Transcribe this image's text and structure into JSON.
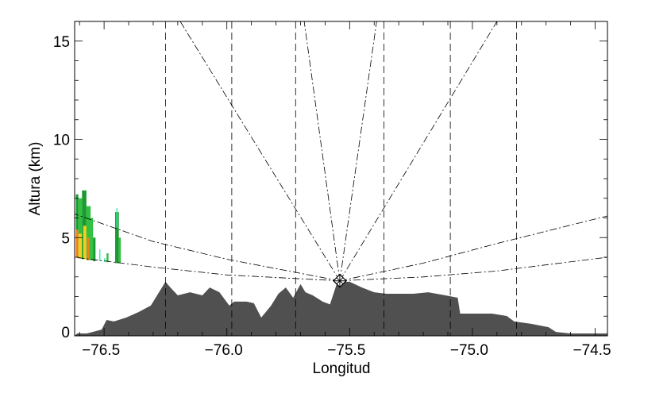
{
  "chart_data": {
    "type": "area",
    "xlabel": "Longitud",
    "ylabel": "Altura (km)",
    "xlim": [
      -76.62,
      -74.45
    ],
    "ylim": [
      0,
      16
    ],
    "xticks": [
      -76.5,
      -76.0,
      -75.5,
      -75.0,
      -74.5
    ],
    "xtick_labels": [
      "−76.5",
      "−76.0",
      "−75.5",
      "−75.0",
      "−74.5"
    ],
    "yticks": [
      0,
      5,
      10,
      15
    ],
    "ytick_labels": [
      "0",
      "5",
      "10",
      "15"
    ],
    "grid": false,
    "terrain_color": "#505050",
    "terrain": [
      [
        -76.61,
        0.12
      ],
      [
        -76.57,
        0.12
      ],
      [
        -76.51,
        0.32
      ],
      [
        -76.49,
        0.81
      ],
      [
        -76.46,
        0.73
      ],
      [
        -76.41,
        0.93
      ],
      [
        -76.36,
        1.21
      ],
      [
        -76.31,
        1.54
      ],
      [
        -76.28,
        2.14
      ],
      [
        -76.25,
        2.75
      ],
      [
        -76.23,
        2.46
      ],
      [
        -76.2,
        2.06
      ],
      [
        -76.15,
        2.22
      ],
      [
        -76.1,
        2.06
      ],
      [
        -76.07,
        2.46
      ],
      [
        -76.03,
        2.22
      ],
      [
        -75.99,
        1.54
      ],
      [
        -75.97,
        1.74
      ],
      [
        -75.92,
        1.74
      ],
      [
        -75.89,
        1.66
      ],
      [
        -75.86,
        0.93
      ],
      [
        -75.82,
        1.54
      ],
      [
        -75.79,
        2.14
      ],
      [
        -75.76,
        2.46
      ],
      [
        -75.73,
        1.94
      ],
      [
        -75.7,
        2.63
      ],
      [
        -75.68,
        2.22
      ],
      [
        -75.65,
        2.06
      ],
      [
        -75.61,
        1.74
      ],
      [
        -75.58,
        1.6
      ],
      [
        -75.55,
        2.75
      ],
      [
        -75.5,
        2.75
      ],
      [
        -75.45,
        2.46
      ],
      [
        -75.4,
        2.22
      ],
      [
        -75.35,
        2.14
      ],
      [
        -75.24,
        2.14
      ],
      [
        -75.18,
        2.22
      ],
      [
        -75.11,
        2.06
      ],
      [
        -75.06,
        1.94
      ],
      [
        -75.05,
        1.13
      ],
      [
        -74.99,
        1.13
      ],
      [
        -74.92,
        1.13
      ],
      [
        -74.86,
        1.01
      ],
      [
        -74.83,
        0.73
      ],
      [
        -74.76,
        0.61
      ],
      [
        -74.69,
        0.44
      ],
      [
        -74.66,
        0.2
      ],
      [
        -74.6,
        0.12
      ],
      [
        -74.45,
        0.12
      ]
    ],
    "radar": {
      "lon": -75.54,
      "alt": 2.8,
      "marker": "diamond-cross"
    },
    "vertical_dashed_lines": [
      -76.25,
      -75.98,
      -75.72,
      -75.36,
      -75.09,
      -74.82
    ],
    "rays_to_top": [
      -76.19,
      -75.685,
      -75.39,
      -74.9
    ],
    "beams": [
      [
        [
          -75.54,
          2.8
        ],
        [
          -76.0,
          3.9
        ],
        [
          -76.3,
          4.8
        ],
        [
          -76.62,
          6.2
        ]
      ],
      [
        [
          -75.54,
          2.8
        ],
        [
          -76.0,
          3.1
        ],
        [
          -76.3,
          3.5
        ],
        [
          -76.62,
          4.0
        ]
      ],
      [
        [
          -75.54,
          2.8
        ],
        [
          -75.2,
          3.7
        ],
        [
          -74.9,
          4.7
        ],
        [
          -74.45,
          6.1
        ]
      ],
      [
        [
          -75.54,
          2.8
        ],
        [
          -75.2,
          3.0
        ],
        [
          -74.9,
          3.3
        ],
        [
          -74.45,
          4.0
        ]
      ]
    ],
    "echo_colors": {
      "strong": "#f08020",
      "moderate": "#f0d020",
      "green": "#30c040",
      "dark_green": "#1a9a30",
      "weak": "#40f0b0"
    },
    "echoes": [
      {
        "lon0": -76.615,
        "lon1": -76.605,
        "base": 4.0,
        "top": 7.2,
        "color": "dark_green"
      },
      {
        "lon0": -76.615,
        "lon1": -76.605,
        "base": 4.0,
        "top": 5.4,
        "color": "strong"
      },
      {
        "lon0": -76.605,
        "lon1": -76.59,
        "base": 3.95,
        "top": 7.0,
        "color": "green"
      },
      {
        "lon0": -76.605,
        "lon1": -76.59,
        "base": 3.95,
        "top": 5.2,
        "color": "moderate"
      },
      {
        "lon0": -76.59,
        "lon1": -76.572,
        "base": 3.9,
        "top": 7.4,
        "color": "dark_green"
      },
      {
        "lon0": -76.585,
        "lon1": -76.572,
        "base": 3.9,
        "top": 5.6,
        "color": "moderate"
      },
      {
        "lon0": -76.572,
        "lon1": -76.555,
        "base": 3.85,
        "top": 6.6,
        "color": "green"
      },
      {
        "lon0": -76.57,
        "lon1": -76.56,
        "base": 3.85,
        "top": 5.0,
        "color": "strong"
      },
      {
        "lon0": -76.555,
        "lon1": -76.545,
        "base": 3.85,
        "top": 6.0,
        "color": "green"
      },
      {
        "lon0": -76.545,
        "lon1": -76.535,
        "base": 3.8,
        "top": 5.0,
        "color": "dark_green"
      },
      {
        "lon0": -76.52,
        "lon1": -76.515,
        "base": 3.8,
        "top": 4.4,
        "color": "weak"
      },
      {
        "lon0": -76.5,
        "lon1": -76.495,
        "base": 3.75,
        "top": 3.95,
        "color": "weak"
      },
      {
        "lon0": -76.49,
        "lon1": -76.482,
        "base": 3.75,
        "top": 4.2,
        "color": "green"
      },
      {
        "lon0": -76.455,
        "lon1": -76.44,
        "base": 3.7,
        "top": 6.3,
        "color": "dark_green"
      },
      {
        "lon0": -76.44,
        "lon1": -76.432,
        "base": 3.7,
        "top": 5.0,
        "color": "green"
      },
      {
        "lon0": -76.45,
        "lon1": -76.445,
        "base": 5.5,
        "top": 6.5,
        "color": "weak"
      }
    ]
  }
}
